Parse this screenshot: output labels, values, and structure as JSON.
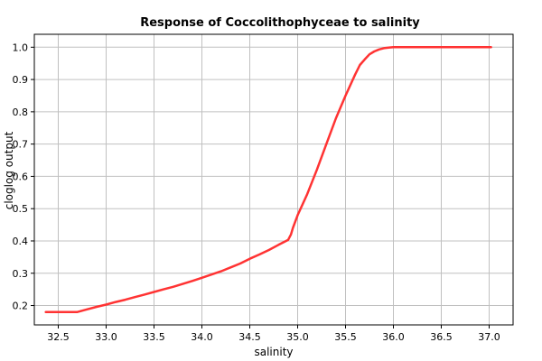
{
  "chart_data": {
    "type": "line",
    "title": "Response of Coccolithophyceae to salinity",
    "xlabel": "salinity",
    "ylabel": "cloglog output",
    "xlim": [
      32.25,
      37.25
    ],
    "ylim": [
      0.14,
      1.04
    ],
    "xticks": [
      "32.5",
      "33.0",
      "33.5",
      "34.0",
      "34.5",
      "35.0",
      "35.5",
      "36.0",
      "36.5",
      "37.0"
    ],
    "yticks": [
      "0.2",
      "0.3",
      "0.4",
      "0.5",
      "0.6",
      "0.7",
      "0.8",
      "0.9",
      "1.0"
    ],
    "grid": true,
    "legend": "none",
    "series": [
      {
        "color": "#ff3333",
        "x": [
          32.37,
          32.5,
          32.7,
          32.8,
          32.9,
          33.0,
          33.1,
          33.2,
          33.3,
          33.4,
          33.5,
          33.6,
          33.7,
          33.8,
          33.9,
          34.0,
          34.1,
          34.2,
          34.3,
          34.4,
          34.5,
          34.6,
          34.7,
          34.8,
          34.9,
          34.93,
          34.95,
          35.0,
          35.1,
          35.2,
          35.3,
          35.4,
          35.5,
          35.6,
          35.65,
          35.7,
          35.75,
          35.8,
          35.85,
          35.9,
          35.95,
          36.0,
          36.05,
          36.1,
          36.5,
          37.02
        ],
        "y": [
          0.18,
          0.18,
          0.18,
          0.188,
          0.196,
          0.203,
          0.211,
          0.218,
          0.226,
          0.234,
          0.242,
          0.25,
          0.258,
          0.267,
          0.276,
          0.286,
          0.296,
          0.306,
          0.318,
          0.33,
          0.345,
          0.358,
          0.372,
          0.388,
          0.403,
          0.42,
          0.44,
          0.48,
          0.545,
          0.62,
          0.7,
          0.78,
          0.85,
          0.915,
          0.945,
          0.962,
          0.978,
          0.987,
          0.993,
          0.997,
          0.999,
          1.0,
          1.0,
          1.0,
          1.0,
          1.0
        ]
      }
    ]
  }
}
